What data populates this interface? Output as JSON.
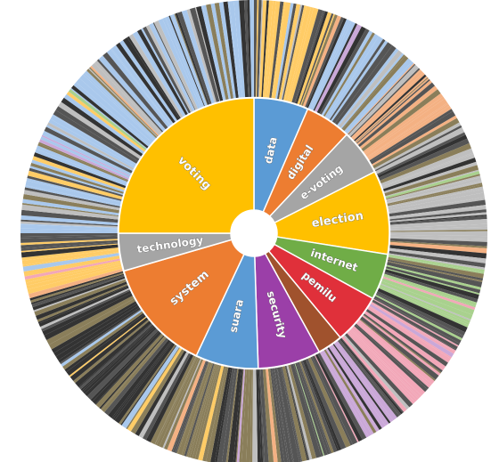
{
  "chart_data": {
    "type": "sunburst",
    "title": "",
    "inner_ring": [
      {
        "label": "data",
        "value": 6.5,
        "color": "#5b9bd5"
      },
      {
        "label": "digital",
        "value": 5.5,
        "color": "#ed7d31"
      },
      {
        "label": "e-voting",
        "value": 5.5,
        "color": "#a5a5a5"
      },
      {
        "label": "election",
        "value": 10,
        "color": "#ffc000"
      },
      {
        "label": "internet",
        "value": 5.5,
        "color": "#70ad47"
      },
      {
        "label": "pemilu",
        "value": 6,
        "color": "#e0303a"
      },
      {
        "label": "",
        "value": 3,
        "color": "#a0522d"
      },
      {
        "label": "security",
        "value": 7.5,
        "color": "#9b3fa8"
      },
      {
        "label": "suara",
        "value": 7.5,
        "color": "#5b9bd5"
      },
      {
        "label": "system",
        "value": 13.5,
        "color": "#ed7d31"
      },
      {
        "label": "technology",
        "value": 4.5,
        "color": "#a5a5a5"
      },
      {
        "label": "voting",
        "value": 25,
        "color": "#ffc000"
      }
    ],
    "outer_ring_palette": [
      "#ffcc66",
      "#a9c8ec",
      "#f4b183",
      "#bfbfbf",
      "#a9d18e",
      "#f2a7b8",
      "#caa8d8",
      "#555555",
      "#8a7e5a",
      "#333333"
    ]
  }
}
